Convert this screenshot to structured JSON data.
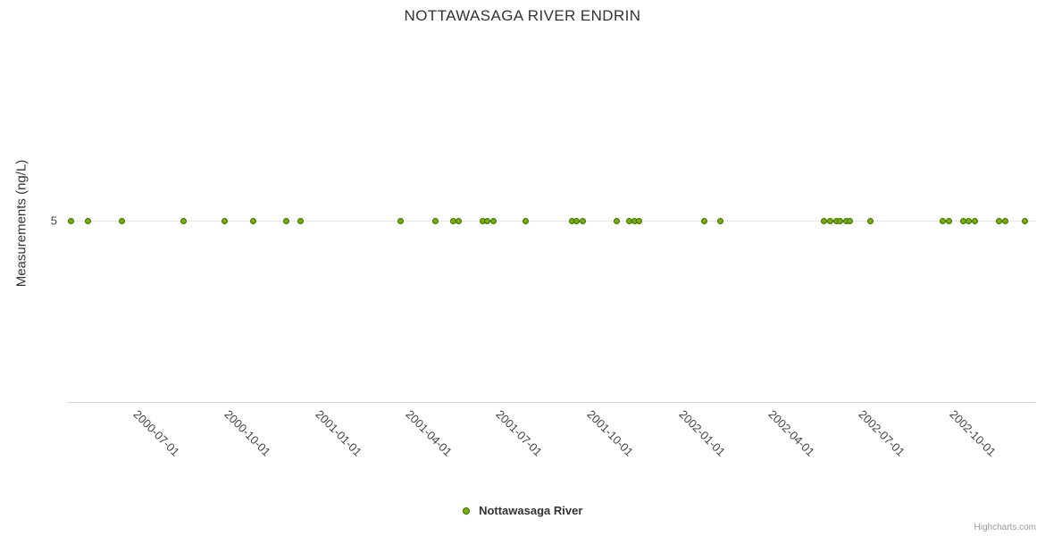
{
  "title": "NOTTAWASAGA RIVER ENDRIN",
  "y_axis": {
    "title": "Measurements (ng/L)",
    "tick": "5"
  },
  "legend": {
    "label": "Nottawasaga River"
  },
  "credits": "Highcharts.com",
  "colors": {
    "marker_fill": "#74b000",
    "marker_stroke": "#3e6e00",
    "axis_line": "#ccd6eb",
    "grid_line": "#e8e8e8",
    "text": "#333333"
  },
  "chart_data": {
    "type": "scatter",
    "title": "NOTTAWASAGA RIVER ENDRIN",
    "xlabel": "",
    "ylabel": "Measurements (ng/L)",
    "ylim": [
      0,
      10
    ],
    "y_ticks_shown": [
      5
    ],
    "grid": "single horizontal gridline at y=5",
    "legend_position": "bottom-center",
    "x_axis": {
      "type": "datetime",
      "min": "2000-04-15",
      "max": "2002-12-16",
      "tick_labels": [
        "2000-07-01",
        "2000-10-01",
        "2001-01-01",
        "2001-04-01",
        "2001-07-01",
        "2001-10-01",
        "2002-01-01",
        "2002-04-01",
        "2002-07-01",
        "2002-10-01"
      ],
      "label_rotation_deg": 45
    },
    "series": [
      {
        "name": "Nottawasaga River",
        "value_constant": 5,
        "points": [
          [
            "2000-04-19",
            5
          ],
          [
            "2000-05-06",
            5
          ],
          [
            "2000-06-09",
            5
          ],
          [
            "2000-08-10",
            5
          ],
          [
            "2000-09-21",
            5
          ],
          [
            "2000-10-19",
            5
          ],
          [
            "2000-11-22",
            5
          ],
          [
            "2000-12-06",
            5
          ],
          [
            "2001-03-17",
            5
          ],
          [
            "2001-04-21",
            5
          ],
          [
            "2001-05-09",
            5
          ],
          [
            "2001-05-14",
            5
          ],
          [
            "2001-06-07",
            5
          ],
          [
            "2001-06-12",
            5
          ],
          [
            "2001-06-18",
            5
          ],
          [
            "2001-07-20",
            5
          ],
          [
            "2001-09-05",
            5
          ],
          [
            "2001-09-10",
            5
          ],
          [
            "2001-09-16",
            5
          ],
          [
            "2001-10-20",
            5
          ],
          [
            "2001-11-02",
            5
          ],
          [
            "2001-11-07",
            5
          ],
          [
            "2001-11-12",
            5
          ],
          [
            "2002-01-16",
            5
          ],
          [
            "2002-02-01",
            5
          ],
          [
            "2002-05-17",
            5
          ],
          [
            "2002-05-23",
            5
          ],
          [
            "2002-05-29",
            5
          ],
          [
            "2002-06-02",
            5
          ],
          [
            "2002-06-08",
            5
          ],
          [
            "2002-06-12",
            5
          ],
          [
            "2002-07-02",
            5
          ],
          [
            "2002-09-13",
            5
          ],
          [
            "2002-09-19",
            5
          ],
          [
            "2002-10-04",
            5
          ],
          [
            "2002-10-09",
            5
          ],
          [
            "2002-10-15",
            5
          ],
          [
            "2002-11-09",
            5
          ],
          [
            "2002-11-15",
            5
          ],
          [
            "2002-12-05",
            5
          ]
        ]
      }
    ]
  }
}
